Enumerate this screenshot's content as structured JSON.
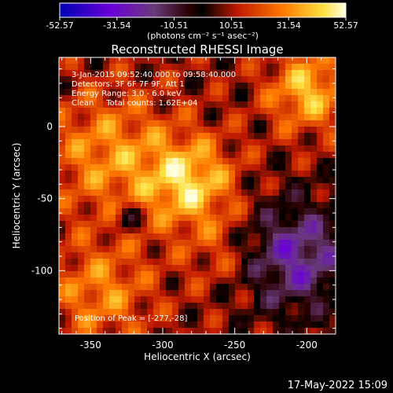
{
  "colorbar": {
    "ticks": [
      "-52.57",
      "-31.54",
      "-10.51",
      "10.51",
      "31.54",
      "52.57"
    ],
    "unit_label": "(photons cm⁻² s⁻¹ asec⁻²)",
    "range": [
      -52.57,
      52.57
    ]
  },
  "chart_data": {
    "type": "heatmap",
    "title": "Reconstructed RHESSI Image",
    "xlabel": "Heliocentric X (arcsec)",
    "ylabel": "Heliocentric Y (arcsec)",
    "xlim": [
      -372,
      -180
    ],
    "ylim": [
      -144,
      48
    ],
    "xticks": [
      -350,
      -300,
      -250,
      -200
    ],
    "yticks": [
      0,
      -50,
      -100
    ],
    "colormap": "rainbow-red-yellow",
    "annotations": [
      "3-Jan-2015 09:52:40.000 to 09:58:40.000",
      "Detectors: 3F 6F 7F 9F, Att 1",
      "Energy Range: 3.0 - 6.0 keV",
      "Clean     Total counts: 1.62E+04"
    ],
    "peak_label": "Position of Peak = [-277,-28]",
    "peak": [
      -277,
      -28
    ]
  },
  "footer": {
    "date": "17-May-2022 15:09"
  }
}
